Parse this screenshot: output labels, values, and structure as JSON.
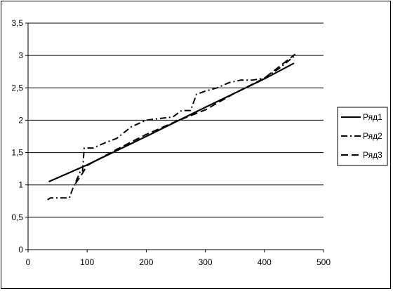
{
  "chart_data": {
    "type": "line",
    "title": "",
    "xlabel": "",
    "ylabel": "",
    "xlim": [
      0,
      500
    ],
    "ylim": [
      0,
      3.5
    ],
    "x_ticks": [
      0,
      100,
      200,
      300,
      400,
      500
    ],
    "x_tick_labels": [
      "0",
      "100",
      "200",
      "300",
      "400",
      "500"
    ],
    "y_ticks": [
      0,
      0.5,
      1,
      1.5,
      2,
      2.5,
      3,
      3.5
    ],
    "y_tick_labels": [
      "0",
      "0,5",
      "1",
      "1,5",
      "2",
      "2,5",
      "3",
      "3,5"
    ],
    "grid": "horizontal",
    "legend_position": "right",
    "series": [
      {
        "name": "Ряд1",
        "style": "solid",
        "color": "#000000",
        "points": [
          [
            35,
            1.05
          ],
          [
            100,
            1.31
          ],
          [
            200,
            1.75
          ],
          [
            300,
            2.2
          ],
          [
            400,
            2.64
          ],
          [
            450,
            2.88
          ]
        ]
      },
      {
        "name": "Ряд2",
        "style": "dash-dot",
        "color": "#000000",
        "points": [
          [
            33,
            0.77
          ],
          [
            38,
            0.8
          ],
          [
            70,
            0.8
          ],
          [
            75,
            0.93
          ],
          [
            88,
            1.2
          ],
          [
            92,
            1.2
          ],
          [
            95,
            1.57
          ],
          [
            110,
            1.57
          ],
          [
            130,
            1.65
          ],
          [
            150,
            1.72
          ],
          [
            175,
            1.9
          ],
          [
            200,
            2.0
          ],
          [
            225,
            2.03
          ],
          [
            245,
            2.05
          ],
          [
            260,
            2.15
          ],
          [
            275,
            2.15
          ],
          [
            285,
            2.4
          ],
          [
            300,
            2.45
          ],
          [
            320,
            2.5
          ],
          [
            340,
            2.58
          ],
          [
            360,
            2.62
          ],
          [
            380,
            2.62
          ],
          [
            400,
            2.65
          ],
          [
            425,
            2.8
          ],
          [
            452,
            3.0
          ]
        ]
      },
      {
        "name": "Ряд3",
        "style": "dash",
        "color": "#000000",
        "points": [
          [
            80,
            1.02
          ],
          [
            92,
            1.18
          ],
          [
            100,
            1.3
          ],
          [
            150,
            1.55
          ],
          [
            200,
            1.78
          ],
          [
            250,
            1.98
          ],
          [
            300,
            2.16
          ],
          [
            350,
            2.42
          ],
          [
            400,
            2.65
          ],
          [
            452,
            3.02
          ]
        ]
      }
    ]
  }
}
